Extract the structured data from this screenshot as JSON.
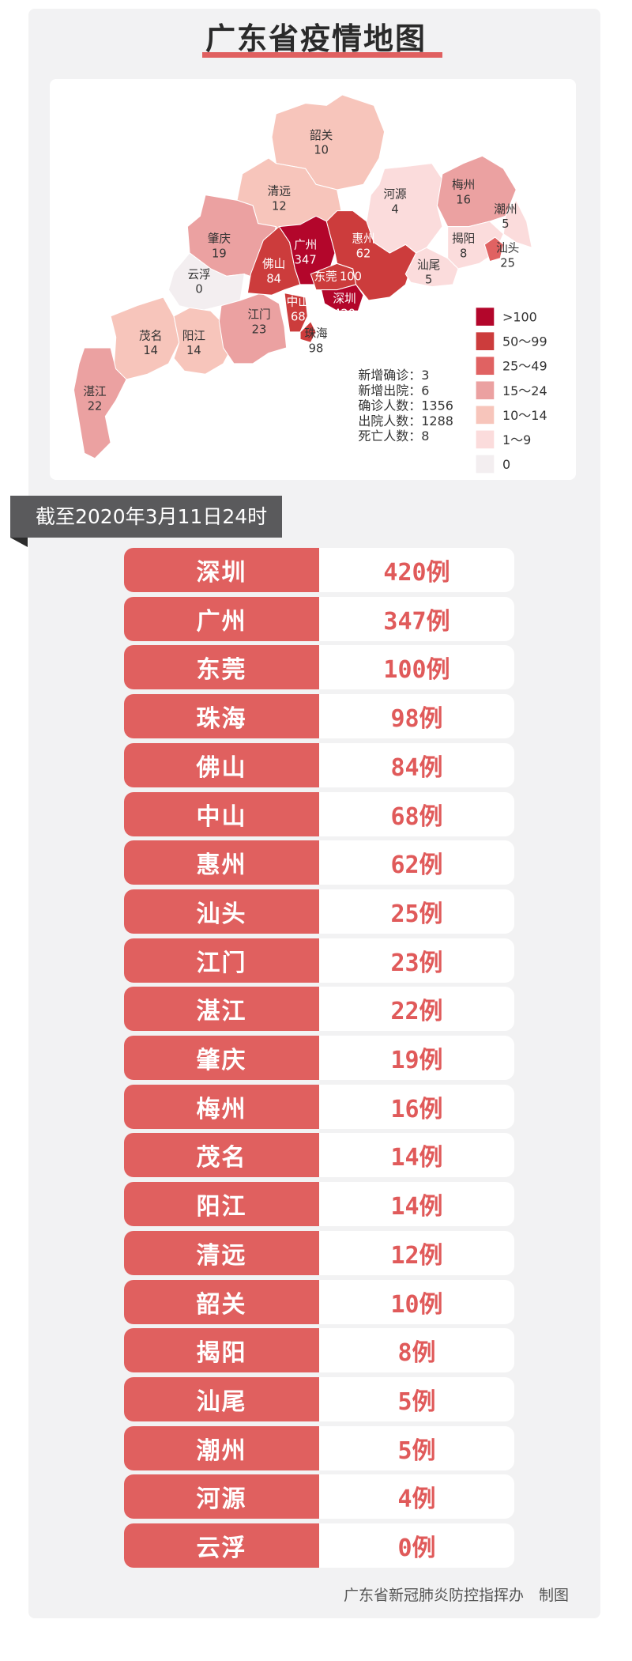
{
  "title": "广东省疫情地图",
  "banner": "截至2020年3月11日24时",
  "colors": {
    "c100": "#b3062b",
    "c50": "#cc3c3c",
    "c25": "#e06262",
    "c15": "#eba1a1",
    "c10": "#f7c5bb",
    "c1": "#fbdcdc",
    "c0": "#f3eef0",
    "row": "#e0605f"
  },
  "map": {
    "regions": [
      {
        "name": "韶关",
        "value": "10"
      },
      {
        "name": "清远",
        "value": "12"
      },
      {
        "name": "肇庆",
        "value": "19"
      },
      {
        "name": "云浮",
        "value": "0"
      },
      {
        "name": "茂名",
        "value": "14"
      },
      {
        "name": "阳江",
        "value": "14"
      },
      {
        "name": "湛江",
        "value": "22"
      },
      {
        "name": "江门",
        "value": "23"
      },
      {
        "name": "佛山",
        "value": "84"
      },
      {
        "name": "广州",
        "value": "347"
      },
      {
        "name": "中山",
        "value": "68"
      },
      {
        "name": "珠海",
        "value": "98"
      },
      {
        "name": "东莞",
        "value": "100"
      },
      {
        "name": "深圳",
        "value": "420"
      },
      {
        "name": "惠州",
        "value": "62"
      },
      {
        "name": "河源",
        "value": "4"
      },
      {
        "name": "梅州",
        "value": "16"
      },
      {
        "name": "潮州",
        "value": "5"
      },
      {
        "name": "揭阳",
        "value": "8"
      },
      {
        "name": "汕头",
        "value": "25"
      },
      {
        "name": "汕尾",
        "value": "5"
      }
    ],
    "legend": [
      ">100",
      "50～99",
      "25～49",
      "15～24",
      "10～14",
      "1～9",
      "0"
    ],
    "stats": [
      "新增确诊：3",
      "新增出院：6",
      "确诊人数：1356",
      "出院人数：1288",
      "死亡人数：8"
    ]
  },
  "rows": [
    {
      "city": "深圳",
      "count": "420例"
    },
    {
      "city": "广州",
      "count": "347例"
    },
    {
      "city": "东莞",
      "count": "100例"
    },
    {
      "city": "珠海",
      "count": "98例"
    },
    {
      "city": "佛山",
      "count": "84例"
    },
    {
      "city": "中山",
      "count": "68例"
    },
    {
      "city": "惠州",
      "count": "62例"
    },
    {
      "city": "汕头",
      "count": "25例"
    },
    {
      "city": "江门",
      "count": "23例"
    },
    {
      "city": "湛江",
      "count": "22例"
    },
    {
      "city": "肇庆",
      "count": "19例"
    },
    {
      "city": "梅州",
      "count": "16例"
    },
    {
      "city": "茂名",
      "count": "14例"
    },
    {
      "city": "阳江",
      "count": "14例"
    },
    {
      "city": "清远",
      "count": "12例"
    },
    {
      "city": "韶关",
      "count": "10例"
    },
    {
      "city": "揭阳",
      "count": "8例"
    },
    {
      "city": "汕尾",
      "count": "5例"
    },
    {
      "city": "潮州",
      "count": "5例"
    },
    {
      "city": "河源",
      "count": "4例"
    },
    {
      "city": "云浮",
      "count": "0例"
    }
  ],
  "footer": "广东省新冠肺炎防控指挥办　制图"
}
